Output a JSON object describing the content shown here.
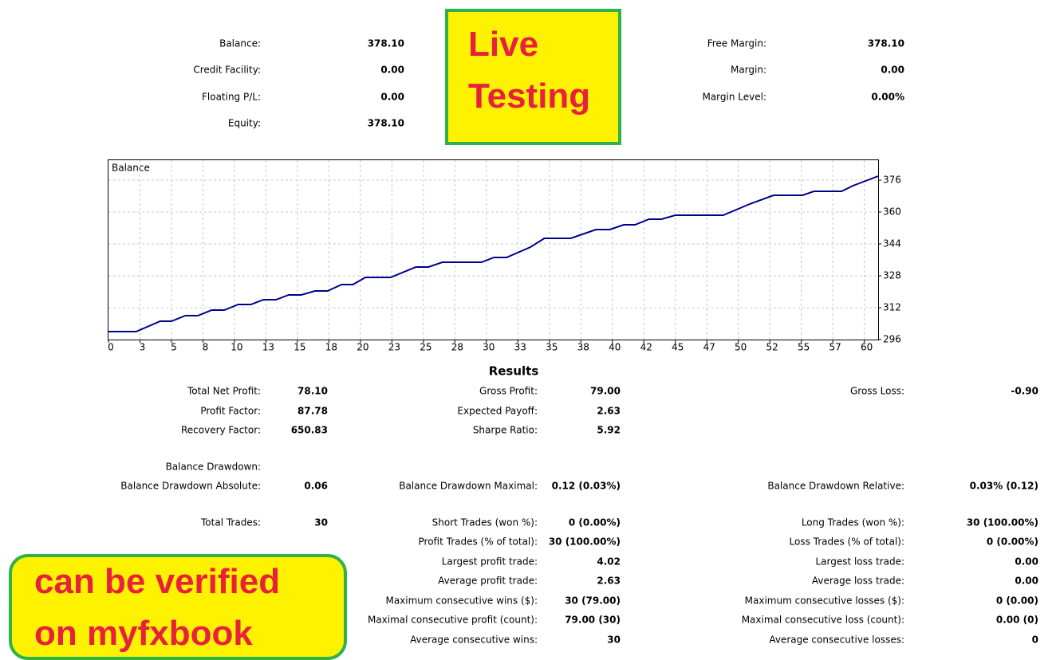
{
  "summary": {
    "left": [
      {
        "label": "Balance:",
        "value": "378.10"
      },
      {
        "label": "Credit Facility:",
        "value": "0.00"
      },
      {
        "label": "Floating P/L:",
        "value": "0.00"
      },
      {
        "label": "Equity:",
        "value": "378.10"
      }
    ],
    "right": [
      {
        "label": "Free Margin:",
        "value": "378.10"
      },
      {
        "label": "Margin:",
        "value": "0.00"
      },
      {
        "label": "Margin Level:",
        "value": "0.00%"
      }
    ]
  },
  "sticker_top": {
    "lines": [
      "Live",
      "Testing"
    ]
  },
  "sticker_bottom": {
    "lines": [
      "can be verified",
      "on myfxbook"
    ]
  },
  "chart_data": {
    "type": "line",
    "title": "Balance",
    "color": "#00008b",
    "grid": true,
    "xlim": [
      0,
      61.1
    ],
    "ylim": [
      296,
      386
    ],
    "xticks": [
      0,
      {
        "value": 2.5,
        "label": "3"
      },
      5,
      {
        "value": 7.5,
        "label": "8"
      },
      10,
      {
        "value": 12.5,
        "label": "13"
      },
      15,
      {
        "value": 17.5,
        "label": "18"
      },
      20,
      {
        "value": 22.5,
        "label": "23"
      },
      25,
      {
        "value": 27.5,
        "label": "28"
      },
      30,
      {
        "value": 32.5,
        "label": "33"
      },
      35,
      {
        "value": 37.5,
        "label": "38"
      },
      40,
      {
        "value": 42.5,
        "label": "42"
      },
      45,
      {
        "value": 47.5,
        "label": "47"
      },
      50,
      {
        "value": 52.5,
        "label": "52"
      },
      55,
      {
        "value": 57.5,
        "label": "57"
      },
      60
    ],
    "yticks": [
      296,
      312,
      328,
      344,
      360,
      376
    ],
    "series": [
      {
        "name": "Balance",
        "x": [
          0,
          2.2,
          4.1,
          5,
          6.1,
          7.1,
          8.2,
          9.2,
          10.3,
          11.3,
          12.3,
          13.3,
          14.3,
          15.3,
          16.4,
          17.4,
          18.5,
          19.4,
          20.4,
          22.4,
          24.4,
          25.4,
          26.5,
          29.6,
          30.6,
          31.6,
          33.5,
          34.6,
          36.7,
          38.7,
          39.8,
          40.9,
          41.8,
          42.9,
          43.9,
          45,
          48.8,
          50.9,
          52.8,
          55.1,
          56,
          58.2,
          59.1,
          61.1
        ],
        "values": [
          300,
          300,
          305.2,
          305.2,
          308,
          308,
          310.8,
          310.8,
          313.6,
          313.6,
          316,
          316,
          318.4,
          318.4,
          320.4,
          320.4,
          323.6,
          323.6,
          327.2,
          327.2,
          332.4,
          332.4,
          334.8,
          334.8,
          337.2,
          337.2,
          342.4,
          346.8,
          346.8,
          351.2,
          351.2,
          353.6,
          353.6,
          356.4,
          356.4,
          358.4,
          358.4,
          364,
          368.4,
          368.4,
          370.4,
          370.4,
          373.2,
          378
        ]
      }
    ]
  },
  "results": {
    "title": "Results",
    "columns": [
      [
        {
          "label": "Total Net Profit:",
          "value": "78.10"
        },
        {
          "label": "Profit Factor:",
          "value": "87.78"
        },
        {
          "label": "Recovery Factor:",
          "value": "650.83"
        },
        {
          "label": "Balance Drawdown:"
        },
        {
          "label": "Balance Drawdown Absolute:",
          "value": "0.06"
        },
        {
          "label": "Total Trades:",
          "value": "30"
        }
      ],
      [
        {
          "label": "Gross Profit:",
          "value": "79.00"
        },
        {
          "label": "Expected Payoff:",
          "value": "2.63"
        },
        {
          "label": "Sharpe Ratio:",
          "value": "5.92"
        },
        {
          "label": "Balance Drawdown Maximal:",
          "value": "0.12 (0.03%)"
        },
        {
          "label": "Short Trades (won %):",
          "value": "0 (0.00%)"
        },
        {
          "label": "Profit Trades (% of total):",
          "value": "30 (100.00%)"
        },
        {
          "label": "Largest profit trade:",
          "value": "4.02"
        },
        {
          "label": "Average profit trade:",
          "value": "2.63"
        },
        {
          "label": "Maximum consecutive wins ($):",
          "value": "30 (79.00)"
        },
        {
          "label": "Maximal consecutive profit (count):",
          "value": "79.00 (30)"
        },
        {
          "label": "Average consecutive wins:",
          "value": "30"
        }
      ],
      [
        {
          "label": "Gross Loss:",
          "value": "-0.90"
        },
        {
          "label": "Balance Drawdown Relative:",
          "value": "0.03% (0.12)"
        },
        {
          "label": "Long Trades (won %):",
          "value": "30 (100.00%)"
        },
        {
          "label": "Loss Trades (% of total):",
          "value": "0 (0.00%)"
        },
        {
          "label": "Largest loss trade:",
          "value": "0.00"
        },
        {
          "label": "Average loss trade:",
          "value": "0.00"
        },
        {
          "label": "Maximum consecutive losses ($):",
          "value": "0 (0.00)"
        },
        {
          "label": "Maximal consecutive loss (count):",
          "value": "0.00 (0)"
        },
        {
          "label": "Average consecutive losses:",
          "value": "0"
        }
      ]
    ]
  }
}
